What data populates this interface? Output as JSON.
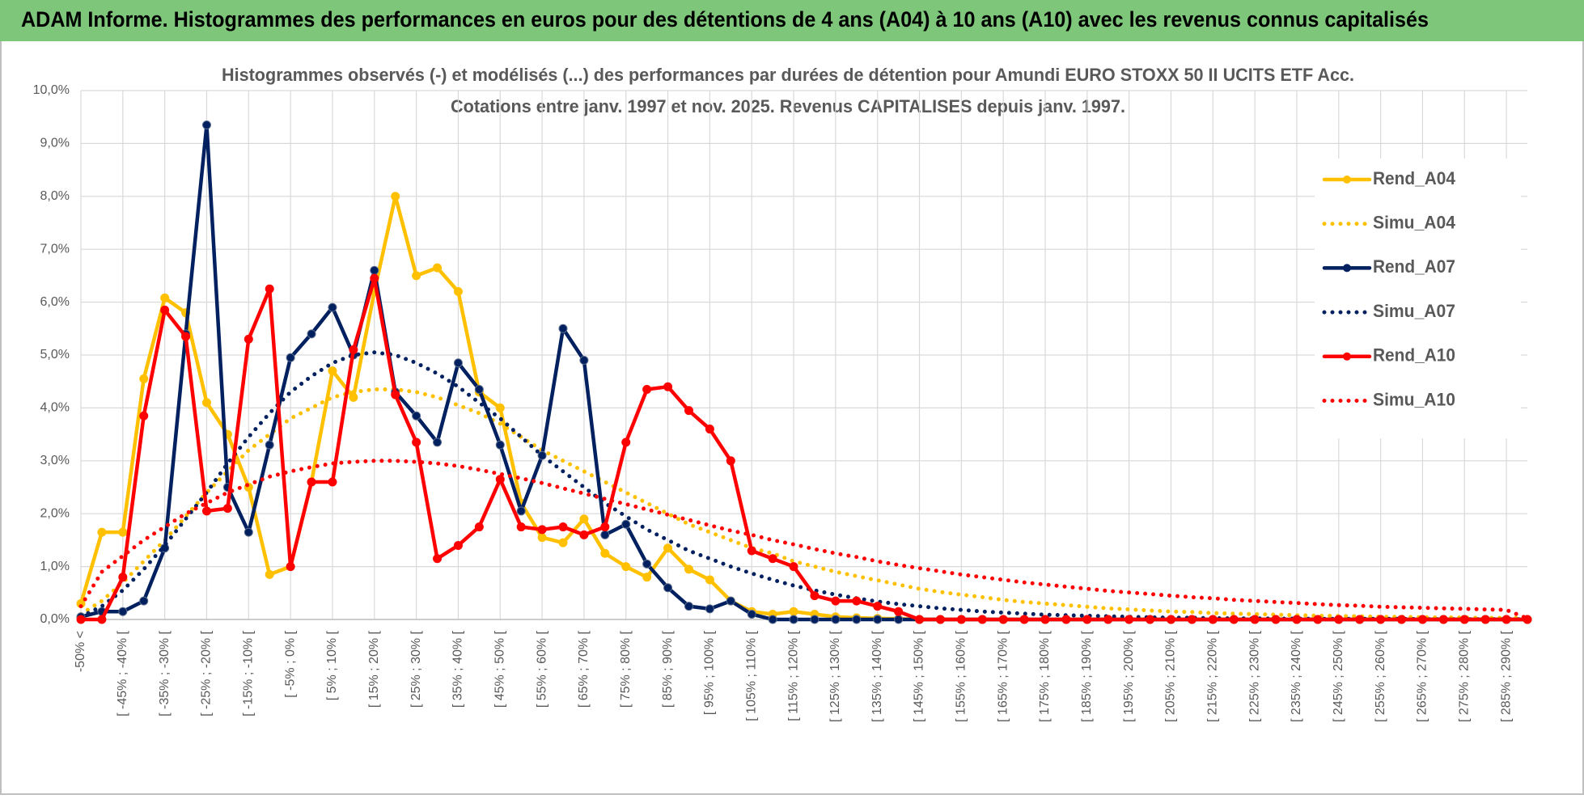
{
  "header": {
    "title": "ADAM Informe. Histogrammes des performances en euros pour des détentions de 4 ans (A04) à 10 ans (A10) avec les revenus connus capitalisés"
  },
  "chart_data": {
    "type": "line",
    "title": "Histogrammes observés (-) et modélisés (...) des performances par durées de détention pour Amundi EURO STOXX 50 II UCITS ETF Acc.",
    "subtitle": "Cotations entre janv. 1997 et nov. 2025. Revenus CAPITALISES depuis janv. 1997.",
    "categories": [
      "-50% <",
      null,
      "[ -45% ; -40% [",
      null,
      "[ -35% ; -30% [",
      null,
      "[ -25% ; -20% [",
      null,
      "[ -15% ; -10% [",
      null,
      "[ -5% ; 0% [",
      null,
      "[ 5% ; 10% [",
      null,
      "[ 15% ; 20% [",
      null,
      "[ 25% ; 30% [",
      null,
      "[ 35% ; 40% [",
      null,
      "[ 45% ; 50% [",
      null,
      "[ 55% ; 60% [",
      null,
      "[ 65% ; 70% [",
      null,
      "[ 75% ; 80% [",
      null,
      "[ 85% ; 90% [",
      null,
      "[ 95% ; 100% [",
      null,
      "[ 105% ; 110% [",
      null,
      "[ 115% ; 120% [",
      null,
      "[ 125% ; 130% [",
      null,
      "[ 135% ; 140% [",
      null,
      "[ 145% ; 150% [",
      null,
      "[ 155% ; 160% [",
      null,
      "[ 165% ; 170% [",
      null,
      "[ 175% ; 180% [",
      null,
      "[ 185% ; 190% [",
      null,
      "[ 195% ; 200% [",
      null,
      "[ 205% ; 210% [",
      null,
      "[ 215% ; 220% [",
      null,
      "[ 225% ; 230% [",
      null,
      "[ 235% ; 240% [",
      null,
      "[ 245% ; 250% [",
      null,
      "[ 255% ; 260% [",
      null,
      "[ 265% ; 270% [",
      null,
      "[ 275% ; 280% [",
      null,
      "[ 285% ; 290% [",
      null
    ],
    "ylim": [
      0,
      10
    ],
    "yticks": [
      {
        "value": 0,
        "label": "0,0%"
      },
      {
        "value": 1,
        "label": "1,0%"
      },
      {
        "value": 2,
        "label": "2,0%"
      },
      {
        "value": 3,
        "label": "3,0%"
      },
      {
        "value": 4,
        "label": "4,0%"
      },
      {
        "value": 5,
        "label": "5,0%"
      },
      {
        "value": 6,
        "label": "6,0%"
      },
      {
        "value": 7,
        "label": "7,0%"
      },
      {
        "value": 8,
        "label": "8,0%"
      },
      {
        "value": 9,
        "label": "9,0%"
      },
      {
        "value": 10,
        "label": "10,0%"
      }
    ],
    "grid": true,
    "legend": "right",
    "series": [
      {
        "name": "Rend_A04",
        "color": "#ffc000",
        "line_style": "solid",
        "markers": true,
        "values": [
          0.3,
          1.65,
          1.65,
          4.55,
          6.08,
          5.8,
          4.1,
          3.5,
          2.5,
          0.85,
          1.0,
          2.6,
          4.7,
          4.2,
          6.2,
          8.0,
          6.5,
          6.65,
          6.2,
          4.3,
          4.0,
          2.2,
          1.55,
          1.45,
          1.9,
          1.25,
          1.0,
          0.8,
          1.35,
          0.95,
          0.75,
          0.35,
          0.15,
          0.1,
          0.15,
          0.1,
          0.05,
          0.03,
          0.02,
          0.01,
          0,
          0,
          0,
          0,
          0,
          0,
          0,
          0,
          0,
          0,
          0,
          0,
          0,
          0,
          0,
          0,
          0,
          0,
          0,
          0,
          0,
          0,
          0,
          0,
          0,
          0,
          0,
          0,
          0,
          0
        ]
      },
      {
        "name": "Simu_A04",
        "color": "#ffc000",
        "line_style": "dotted",
        "markers": false,
        "values": [
          0.1,
          0.35,
          0.7,
          1.1,
          1.5,
          1.95,
          2.4,
          2.8,
          3.2,
          3.5,
          3.8,
          4.0,
          4.2,
          4.3,
          4.35,
          4.35,
          4.3,
          4.2,
          4.05,
          3.9,
          3.7,
          3.45,
          3.2,
          3.0,
          2.8,
          2.6,
          2.4,
          2.2,
          2.0,
          1.8,
          1.65,
          1.5,
          1.35,
          1.25,
          1.1,
          1.0,
          0.9,
          0.82,
          0.74,
          0.66,
          0.58,
          0.52,
          0.47,
          0.42,
          0.37,
          0.33,
          0.3,
          0.27,
          0.24,
          0.21,
          0.19,
          0.17,
          0.15,
          0.14,
          0.12,
          0.11,
          0.1,
          0.09,
          0.08,
          0.07,
          0.065,
          0.06,
          0.05,
          0.05,
          0.04,
          0.04,
          0.035,
          0.03,
          0.03,
          0.03
        ]
      },
      {
        "name": "Rend_A07",
        "color": "#002060",
        "line_style": "solid",
        "markers": true,
        "values": [
          0.05,
          0.15,
          0.15,
          0.35,
          1.35,
          5.4,
          9.35,
          2.5,
          1.65,
          3.3,
          4.95,
          5.4,
          5.9,
          5.0,
          6.6,
          4.3,
          3.85,
          3.35,
          4.85,
          4.35,
          3.3,
          2.05,
          3.1,
          5.5,
          4.9,
          1.6,
          1.8,
          1.05,
          0.6,
          0.25,
          0.2,
          0.35,
          0.1,
          0,
          0,
          0,
          0,
          0,
          0,
          0,
          0,
          0,
          0,
          0,
          0,
          0,
          0,
          0,
          0,
          0,
          0,
          0,
          0,
          0,
          0,
          0,
          0,
          0,
          0,
          0,
          0,
          0,
          0,
          0,
          0,
          0,
          0,
          0,
          0,
          0
        ]
      },
      {
        "name": "Simu_A07",
        "color": "#002060",
        "line_style": "dotted",
        "markers": false,
        "values": [
          0.05,
          0.25,
          0.55,
          0.95,
          1.4,
          1.9,
          2.4,
          2.95,
          3.45,
          3.9,
          4.3,
          4.6,
          4.85,
          5.0,
          5.05,
          5.0,
          4.85,
          4.65,
          4.4,
          4.1,
          3.8,
          3.45,
          3.1,
          2.8,
          2.5,
          2.2,
          1.95,
          1.7,
          1.5,
          1.3,
          1.15,
          1.0,
          0.87,
          0.75,
          0.64,
          0.55,
          0.47,
          0.4,
          0.34,
          0.29,
          0.25,
          0.21,
          0.18,
          0.15,
          0.13,
          0.11,
          0.09,
          0.08,
          0.07,
          0.06,
          0.05,
          0.04,
          0.035,
          0.03,
          0.025,
          0.02,
          0.02,
          0.015,
          0.015,
          0.01,
          0.01,
          0.01,
          0.01,
          0.01,
          0.005,
          0.005,
          0.005,
          0.005,
          0.005,
          0.005
        ]
      },
      {
        "name": "Rend_A10",
        "color": "#ff0000",
        "line_style": "solid",
        "markers": true,
        "values": [
          0,
          0,
          0.8,
          3.85,
          5.85,
          5.35,
          2.05,
          2.1,
          5.3,
          6.25,
          1.0,
          2.6,
          2.6,
          5.1,
          6.45,
          4.25,
          3.35,
          1.15,
          1.4,
          1.75,
          2.65,
          1.75,
          1.7,
          1.75,
          1.6,
          1.75,
          3.35,
          4.35,
          4.4,
          3.95,
          3.6,
          3.0,
          1.3,
          1.15,
          1.0,
          0.45,
          0.35,
          0.35,
          0.25,
          0.15,
          0,
          0,
          0,
          0,
          0,
          0,
          0,
          0,
          0,
          0,
          0,
          0,
          0,
          0,
          0,
          0,
          0,
          0,
          0,
          0,
          0,
          0,
          0,
          0,
          0,
          0,
          0,
          0,
          0,
          0
        ]
      },
      {
        "name": "Simu_A10",
        "color": "#ff0000",
        "line_style": "dotted",
        "markers": false,
        "values": [
          0.25,
          0.9,
          1.2,
          1.5,
          1.75,
          2.0,
          2.2,
          2.4,
          2.55,
          2.7,
          2.8,
          2.88,
          2.95,
          2.98,
          3.0,
          3.0,
          2.98,
          2.95,
          2.9,
          2.83,
          2.75,
          2.67,
          2.58,
          2.48,
          2.38,
          2.28,
          2.18,
          2.08,
          1.98,
          1.88,
          1.78,
          1.68,
          1.6,
          1.5,
          1.42,
          1.33,
          1.25,
          1.18,
          1.1,
          1.03,
          0.97,
          0.91,
          0.85,
          0.8,
          0.75,
          0.7,
          0.66,
          0.62,
          0.58,
          0.54,
          0.51,
          0.48,
          0.45,
          0.42,
          0.4,
          0.37,
          0.35,
          0.33,
          0.31,
          0.29,
          0.27,
          0.26,
          0.24,
          0.23,
          0.22,
          0.21,
          0.2,
          0.19,
          0.18,
          0.02
        ]
      }
    ]
  }
}
